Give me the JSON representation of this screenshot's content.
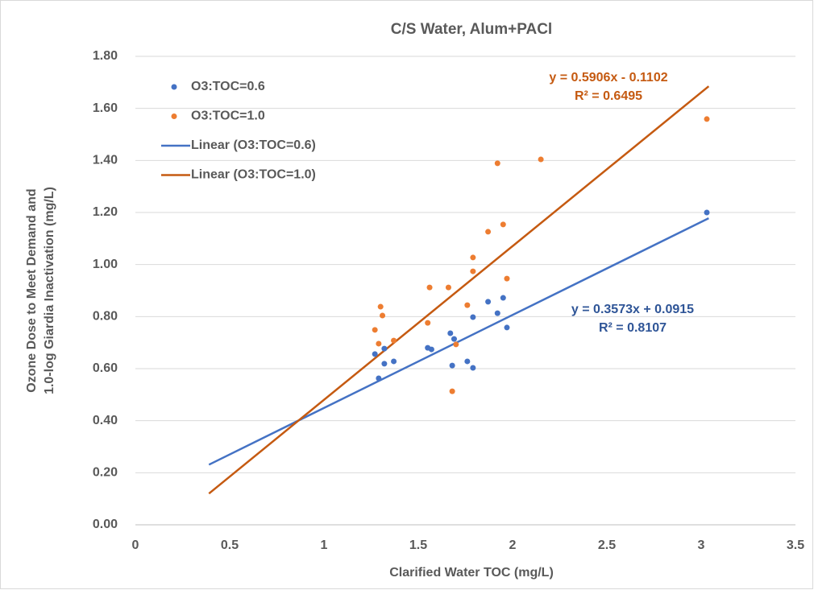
{
  "chart_data": {
    "type": "scatter",
    "title": "C/S  Water, Alum+PACl",
    "x_label": "Clarified Water TOC (mg/L)",
    "y_label": [
      "Ozone Dose to Meet Demand and",
      "1.0-log Giardia Inactivation (mg/L)"
    ],
    "xlim": [
      0,
      3.5
    ],
    "ylim": [
      0,
      1.8
    ],
    "xticks": [
      0,
      0.5,
      1,
      1.5,
      2,
      2.5,
      3,
      3.5
    ],
    "yticks": [
      {
        "value": 0,
        "label": "0.00"
      },
      {
        "value": 0.2,
        "label": "0.20"
      },
      {
        "value": 0.4,
        "label": "0.40"
      },
      {
        "value": 0.6,
        "label": "0.60"
      },
      {
        "value": 0.8,
        "label": "0.80"
      },
      {
        "value": 1.0,
        "label": "1.00"
      },
      {
        "value": 1.2,
        "label": "1.20"
      },
      {
        "value": 1.4,
        "label": "1.40"
      },
      {
        "value": 1.6,
        "label": "1.60"
      },
      {
        "value": 1.8,
        "label": "1.80"
      }
    ],
    "grid": true,
    "legend": "upper left",
    "series": [
      {
        "name": "O3:TOC=0.6",
        "color": "#4472c4",
        "x": [
          1.27,
          1.32,
          1.32,
          1.29,
          1.37,
          1.55,
          1.57,
          1.67,
          1.69,
          1.68,
          1.76,
          1.79,
          1.79,
          1.87,
          1.92,
          1.95,
          1.97,
          3.03
        ],
        "values": [
          0.656,
          0.677,
          0.619,
          0.563,
          0.628,
          0.68,
          0.674,
          0.736,
          0.714,
          0.612,
          0.628,
          0.798,
          0.603,
          0.857,
          0.813,
          0.872,
          0.758,
          1.2
        ]
      },
      {
        "name": "O3:TOC=1.0",
        "color": "#ed7d31",
        "x": [
          1.27,
          1.3,
          1.31,
          1.29,
          1.37,
          1.56,
          1.55,
          1.66,
          1.7,
          1.68,
          1.76,
          1.79,
          1.79,
          1.87,
          1.95,
          1.92,
          1.97,
          2.15,
          3.03
        ],
        "values": [
          0.749,
          0.838,
          0.804,
          0.696,
          0.708,
          0.912,
          0.776,
          0.912,
          0.693,
          0.513,
          0.844,
          1.027,
          0.974,
          1.126,
          1.154,
          1.389,
          0.946,
          1.404,
          1.559
        ]
      }
    ],
    "trendlines": [
      {
        "name": "Linear (O3:TOC=0.6)",
        "color": "#4472c4",
        "x": [
          0.39,
          3.04
        ],
        "values": [
          0.231,
          1.178
        ]
      },
      {
        "name": "Linear (O3:TOC=1.0)",
        "color": "#c55a11",
        "x": [
          0.39,
          3.04
        ],
        "values": [
          0.12,
          1.685
        ]
      }
    ],
    "annotations": [
      {
        "text": "y = 0.5906x - 0.1102",
        "color": "#c55a11"
      },
      {
        "text": "R² = 0.6495",
        "color": "#c55a11"
      },
      {
        "text": "y = 0.3573x + 0.0915",
        "color": "#2f5597"
      },
      {
        "text": "R² = 0.8107",
        "color": "#2f5597"
      }
    ]
  }
}
